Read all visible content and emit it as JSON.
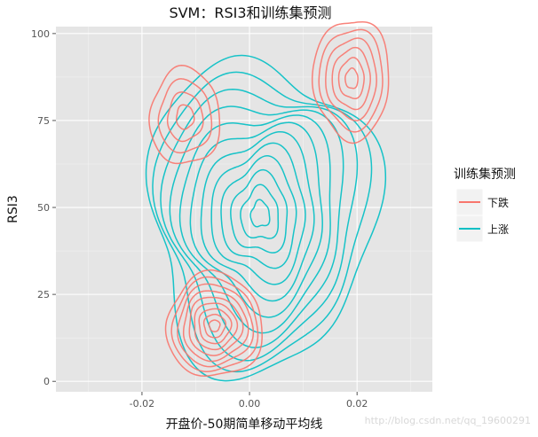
{
  "chart_data": {
    "type": "contour",
    "title": "SVM：RSI3和训练集预测",
    "xlabel": "开盘价-50期简单移动平均线",
    "ylabel": "RSI3",
    "xlim": [
      -0.036,
      0.034
    ],
    "ylim": [
      -3,
      102
    ],
    "x_ticks": [
      -0.02,
      0.0,
      0.02
    ],
    "x_tick_labels": [
      "-0.02",
      "0.00",
      "0.02"
    ],
    "y_ticks": [
      0,
      25,
      50,
      75,
      100
    ],
    "y_tick_labels": [
      "0",
      "25",
      "50",
      "75",
      "100"
    ],
    "grid": true,
    "legend": {
      "title": "训练集预测",
      "position": "right"
    },
    "series": [
      {
        "name": "下跌",
        "color": "#F8766D",
        "peaks": [
          {
            "label": "peak-low",
            "x": -0.0065,
            "y": 16,
            "sx": 0.0095,
            "sy": 16,
            "levels": 9
          },
          {
            "label": "peak-top-left",
            "x": -0.012,
            "y": 76,
            "sx": 0.0075,
            "sy": 16,
            "levels": 4
          },
          {
            "label": "peak-top-right",
            "x": 0.019,
            "y": 87,
            "sx": 0.0078,
            "sy": 19,
            "levels": 6
          }
        ]
      },
      {
        "name": "上涨",
        "color": "#00BFC4",
        "peaks": [
          {
            "label": "body",
            "x": 0.002,
            "y": 48,
            "sx": 0.022,
            "sy": 47,
            "levels": 12
          }
        ]
      }
    ]
  },
  "watermark": "http://blog.csdn.net/qq_19600291"
}
